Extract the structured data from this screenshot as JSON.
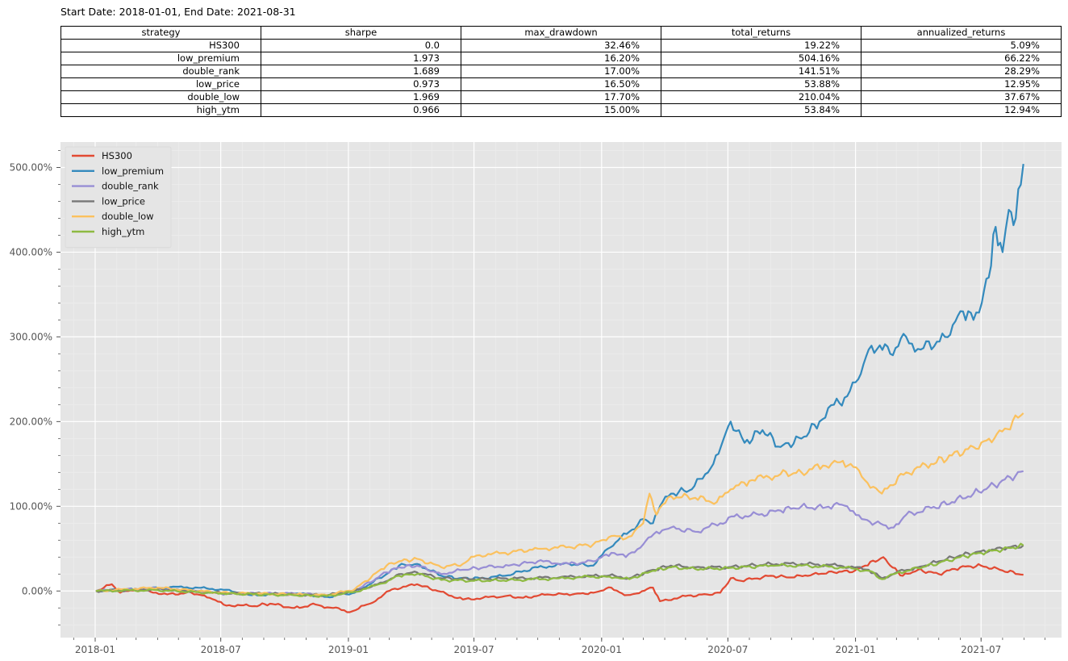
{
  "header": {
    "dates": "Start Date: 2018-01-01, End Date: 2021-08-31"
  },
  "table": {
    "columns": [
      "strategy",
      "sharpe",
      "max_drawdown",
      "total_returns",
      "annualized_returns"
    ],
    "rows": [
      [
        "HS300",
        "0.0",
        "32.46%",
        "19.22%",
        "5.09%"
      ],
      [
        "low_premium",
        "1.973",
        "16.20%",
        "504.16%",
        "66.22%"
      ],
      [
        "double_rank",
        "1.689",
        "17.00%",
        "141.51%",
        "28.29%"
      ],
      [
        "low_price",
        "0.973",
        "16.50%",
        "53.88%",
        "12.95%"
      ],
      [
        "double_low",
        "1.969",
        "17.70%",
        "210.04%",
        "37.67%"
      ],
      [
        "high_ytm",
        "0.966",
        "15.00%",
        "53.84%",
        "12.94%"
      ]
    ]
  },
  "chart_data": {
    "type": "line",
    "x_ticks": [
      "2018-01",
      "2018-07",
      "2019-01",
      "2019-07",
      "2020-01",
      "2020-07",
      "2021-01",
      "2021-07"
    ],
    "y_ticks": [
      "0.00%",
      "100.00%",
      "200.00%",
      "300.00%",
      "400.00%",
      "500.00%"
    ],
    "y_tick_values": [
      0,
      100,
      200,
      300,
      400,
      500
    ],
    "xlim": [
      "2017-11-12",
      "2021-10-25"
    ],
    "ylim": [
      -55,
      530
    ],
    "grid": true,
    "legend": "top-left",
    "series": [
      {
        "name": "HS300",
        "color": "#E24A33",
        "dates": [
          "2018-01-02",
          "2018-01-25",
          "2018-02-06",
          "2018-03-01",
          "2018-04-15",
          "2018-05-20",
          "2018-06-15",
          "2018-07-05",
          "2018-08-15",
          "2018-09-10",
          "2018-10-15",
          "2018-11-15",
          "2018-12-10",
          "2019-01-03",
          "2019-02-01",
          "2019-03-05",
          "2019-04-10",
          "2019-05-10",
          "2019-06-15",
          "2019-08-15",
          "2019-09-10",
          "2019-10-15",
          "2019-11-20",
          "2019-12-20",
          "2020-01-15",
          "2020-02-03",
          "2020-02-20",
          "2020-03-15",
          "2020-03-25",
          "2020-05-01",
          "2020-06-01",
          "2020-06-20",
          "2020-07-05",
          "2020-07-20",
          "2020-09-01",
          "2020-10-01",
          "2020-11-01",
          "2020-12-01",
          "2020-12-31",
          "2021-01-15",
          "2021-02-10",
          "2021-02-20",
          "2021-03-10",
          "2021-04-01",
          "2021-05-01",
          "2021-06-01",
          "2021-07-01",
          "2021-07-28",
          "2021-08-31"
        ],
        "values": [
          0,
          8,
          -2,
          2,
          -4,
          -2,
          -8,
          -16,
          -18,
          -15,
          -20,
          -16,
          -20,
          -25,
          -15,
          2,
          8,
          0,
          -10,
          -6,
          -8,
          -4,
          -4,
          -2,
          4,
          -5,
          -3,
          4,
          -12,
          -6,
          -4,
          -2,
          15,
          12,
          18,
          16,
          20,
          22,
          24,
          30,
          40,
          30,
          18,
          25,
          20,
          28,
          30,
          25,
          19.2
        ]
      },
      {
        "name": "low_premium",
        "color": "#348ABD",
        "dates": [
          "2018-01-02",
          "2018-03-01",
          "2018-05-01",
          "2018-07-01",
          "2018-08-15",
          "2018-10-20",
          "2018-12-01",
          "2019-01-10",
          "2019-02-25",
          "2019-03-15",
          "2019-04-10",
          "2019-05-15",
          "2019-06-10",
          "2019-07-10",
          "2019-08-15",
          "2019-10-01",
          "2019-11-15",
          "2019-12-20",
          "2020-01-10",
          "2020-01-25",
          "2020-02-10",
          "2020-03-01",
          "2020-03-15",
          "2020-03-25",
          "2020-04-10",
          "2020-05-10",
          "2020-06-10",
          "2020-06-25",
          "2020-07-05",
          "2020-07-25",
          "2020-08-20",
          "2020-09-15",
          "2020-10-15",
          "2020-11-10",
          "2020-12-01",
          "2020-12-20",
          "2021-01-05",
          "2021-01-20",
          "2021-02-05",
          "2021-02-20",
          "2021-03-15",
          "2021-04-05",
          "2021-05-10",
          "2021-06-05",
          "2021-06-20",
          "2021-07-02",
          "2021-07-12",
          "2021-07-22",
          "2021-08-01",
          "2021-08-10",
          "2021-08-20",
          "2021-08-31"
        ],
        "values": [
          0,
          2,
          5,
          2,
          -5,
          -3,
          -7,
          -2,
          20,
          30,
          32,
          18,
          15,
          15,
          18,
          28,
          32,
          30,
          50,
          60,
          70,
          85,
          80,
          100,
          115,
          120,
          150,
          180,
          200,
          175,
          190,
          170,
          180,
          200,
          220,
          230,
          250,
          285,
          290,
          280,
          300,
          285,
          300,
          330,
          320,
          340,
          370,
          430,
          400,
          450,
          440,
          504.16
        ]
      },
      {
        "name": "double_rank",
        "color": "#988ED5",
        "dates": [
          "2018-01-02",
          "2018-04-01",
          "2018-07-01",
          "2018-10-15",
          "2018-12-01",
          "2019-01-10",
          "2019-02-25",
          "2019-03-15",
          "2019-04-10",
          "2019-05-15",
          "2019-06-15",
          "2019-07-15",
          "2019-08-20",
          "2019-10-01",
          "2019-11-15",
          "2019-12-20",
          "2020-01-15",
          "2020-02-05",
          "2020-03-01",
          "2020-03-20",
          "2020-04-10",
          "2020-05-15",
          "2020-06-20",
          "2020-07-10",
          "2020-08-15",
          "2020-09-15",
          "2020-10-15",
          "2020-11-15",
          "2020-12-01",
          "2020-12-20",
          "2021-01-10",
          "2021-02-10",
          "2021-02-25",
          "2021-03-15",
          "2021-04-20",
          "2021-05-20",
          "2021-06-20",
          "2021-07-20",
          "2021-08-31"
        ],
        "values": [
          0,
          3,
          -3,
          -3,
          -5,
          0,
          22,
          28,
          30,
          20,
          25,
          28,
          30,
          35,
          32,
          35,
          45,
          40,
          55,
          70,
          75,
          70,
          80,
          88,
          90,
          95,
          100,
          98,
          102,
          100,
          85,
          78,
          75,
          90,
          98,
          105,
          115,
          125,
          141.5
        ]
      },
      {
        "name": "low_price",
        "color": "#777777",
        "dates": [
          "2018-01-02",
          "2018-04-01",
          "2018-07-01",
          "2018-10-15",
          "2018-12-01",
          "2019-01-10",
          "2019-02-20",
          "2019-03-15",
          "2019-04-10",
          "2019-05-15",
          "2019-07-01",
          "2019-09-01",
          "2019-11-01",
          "2019-12-20",
          "2020-01-20",
          "2020-02-10",
          "2020-03-15",
          "2020-04-10",
          "2020-05-15",
          "2020-07-01",
          "2020-09-01",
          "2020-10-15",
          "2020-12-10",
          "2021-01-20",
          "2021-02-08",
          "2021-03-01",
          "2021-04-01",
          "2021-05-01",
          "2021-06-01",
          "2021-07-01",
          "2021-08-01",
          "2021-08-31"
        ],
        "values": [
          0,
          2,
          -2,
          -4,
          -5,
          0,
          10,
          20,
          22,
          15,
          14,
          15,
          16,
          18,
          18,
          15,
          25,
          30,
          28,
          28,
          32,
          32,
          30,
          25,
          15,
          22,
          28,
          35,
          42,
          47,
          50,
          53.9
        ]
      },
      {
        "name": "double_low",
        "color": "#FBC15E",
        "dates": [
          "2018-01-02",
          "2018-04-01",
          "2018-07-01",
          "2018-10-15",
          "2018-12-01",
          "2019-01-10",
          "2019-02-25",
          "2019-03-15",
          "2019-04-10",
          "2019-05-15",
          "2019-06-15",
          "2019-07-05",
          "2019-08-15",
          "2019-10-01",
          "2019-11-15",
          "2019-12-20",
          "2020-01-15",
          "2020-02-05",
          "2020-03-01",
          "2020-03-10",
          "2020-03-20",
          "2020-04-10",
          "2020-05-15",
          "2020-06-15",
          "2020-07-05",
          "2020-08-01",
          "2020-09-15",
          "2020-10-15",
          "2020-11-15",
          "2020-12-10",
          "2020-12-25",
          "2021-01-10",
          "2021-02-08",
          "2021-02-20",
          "2021-03-15",
          "2021-04-20",
          "2021-05-20",
          "2021-06-20",
          "2021-07-20",
          "2021-08-31"
        ],
        "values": [
          0,
          4,
          -2,
          -4,
          -5,
          2,
          30,
          35,
          38,
          28,
          32,
          42,
          45,
          50,
          52,
          55,
          65,
          62,
          80,
          115,
          90,
          112,
          110,
          105,
          120,
          130,
          138,
          140,
          148,
          152,
          150,
          135,
          115,
          125,
          140,
          150,
          160,
          170,
          180,
          210.0
        ]
      },
      {
        "name": "high_ytm",
        "color": "#8EBA42",
        "dates": [
          "2018-01-02",
          "2018-04-01",
          "2018-07-01",
          "2018-10-15",
          "2018-12-01",
          "2019-01-10",
          "2019-02-20",
          "2019-03-15",
          "2019-04-10",
          "2019-05-15",
          "2019-07-01",
          "2019-09-01",
          "2019-11-01",
          "2019-12-20",
          "2020-01-20",
          "2020-02-10",
          "2020-03-15",
          "2020-04-10",
          "2020-05-15",
          "2020-07-01",
          "2020-09-01",
          "2020-10-15",
          "2020-12-10",
          "2021-01-20",
          "2021-02-08",
          "2021-03-01",
          "2021-04-01",
          "2021-05-01",
          "2021-06-01",
          "2021-07-01",
          "2021-08-01",
          "2021-08-31"
        ],
        "values": [
          0,
          1,
          -3,
          -5,
          -6,
          -1,
          9,
          18,
          20,
          13,
          12,
          13,
          15,
          17,
          16,
          14,
          24,
          28,
          26,
          27,
          30,
          30,
          28,
          24,
          14,
          21,
          27,
          33,
          40,
          45,
          49,
          53.8
        ]
      }
    ]
  }
}
